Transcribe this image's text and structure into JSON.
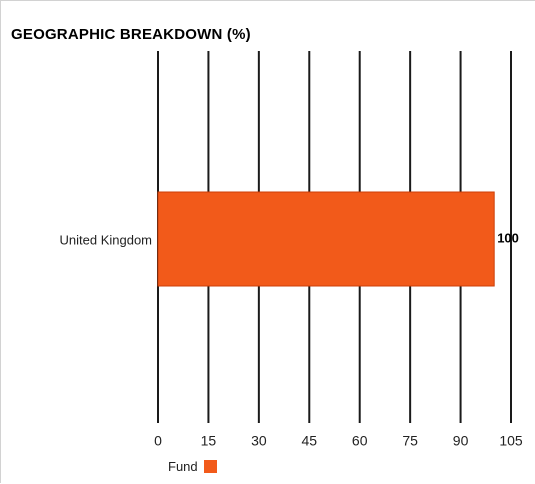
{
  "title": "GEOGRAPHIC BREAKDOWN (%)",
  "chart_data": {
    "type": "bar",
    "orientation": "horizontal",
    "title": "GEOGRAPHIC BREAKDOWN (%)",
    "categories": [
      "United Kingdom"
    ],
    "series": [
      {
        "name": "Fund",
        "values": [
          100
        ],
        "color": "#f25a1a"
      }
    ],
    "data_labels": [
      "100"
    ],
    "xlim": [
      0,
      105
    ],
    "xticks": [
      0,
      15,
      30,
      45,
      60,
      75,
      90,
      105
    ],
    "grid": true,
    "gridline_color": "#1a1a1a",
    "legend_position": "bottom"
  },
  "legend": {
    "label": "Fund",
    "color": "#f25a1a"
  }
}
